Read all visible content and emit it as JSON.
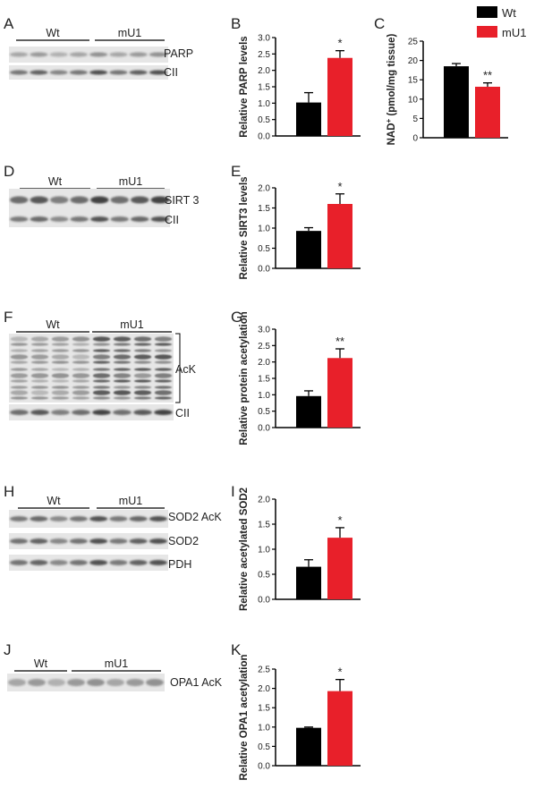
{
  "colors": {
    "wt": "#000000",
    "mu1": "#e8202a",
    "blot_band": "#2a2a2a"
  },
  "legend": {
    "items": [
      {
        "label": "Wt",
        "color": "#000000"
      },
      {
        "label": "mU1",
        "color": "#e8202a"
      }
    ]
  },
  "blots": [
    {
      "panel": "A",
      "groups": [
        "Wt",
        "mU1"
      ],
      "bands": [
        "PARP",
        "CII"
      ]
    },
    {
      "panel": "D",
      "groups": [
        "Wt",
        "mU1"
      ],
      "bands": [
        "SIRT 3",
        "CII"
      ]
    },
    {
      "panel": "F",
      "groups": [
        "Wt",
        "mU1"
      ],
      "bands": [
        "AcK",
        "CII"
      ]
    },
    {
      "panel": "H",
      "groups": [
        "Wt",
        "mU1"
      ],
      "bands": [
        "SOD2 AcK",
        "SOD2",
        "PDH"
      ]
    },
    {
      "panel": "J",
      "groups": [
        "Wt",
        "mU1"
      ],
      "bands": [
        "OPA1 AcK"
      ]
    }
  ],
  "chart_data": [
    {
      "panel": "B",
      "type": "bar",
      "ylabel": "Relative PARP levels",
      "ylim": [
        0,
        3.0
      ],
      "yticks": [
        0.0,
        0.5,
        1.0,
        1.5,
        2.0,
        2.5,
        3.0
      ],
      "tick_format": 1,
      "categories": [
        "Wt",
        "mU1"
      ],
      "values": [
        1.02,
        2.38
      ],
      "errors": [
        0.3,
        0.22
      ],
      "significance": "*"
    },
    {
      "panel": "C",
      "type": "bar",
      "ylabel_pre": "NAD",
      "ylabel_sup": "+",
      "ylabel_post": " (pmol/mg tissue)",
      "ylim": [
        0,
        25
      ],
      "yticks": [
        0,
        5,
        10,
        15,
        20,
        25
      ],
      "tick_format": 0,
      "categories": [
        "Wt",
        "mU1"
      ],
      "values": [
        18.5,
        13.2
      ],
      "errors": [
        0.7,
        1.0
      ],
      "significance": "**"
    },
    {
      "panel": "E",
      "type": "bar",
      "ylabel": "Relative SIRT3 levels",
      "ylim": [
        0,
        2.0
      ],
      "yticks": [
        0.0,
        0.5,
        1.0,
        1.5,
        2.0
      ],
      "tick_format": 1,
      "categories": [
        "Wt",
        "mU1"
      ],
      "values": [
        0.93,
        1.6
      ],
      "errors": [
        0.08,
        0.25
      ],
      "significance": "*"
    },
    {
      "panel": "G",
      "type": "bar",
      "ylabel": "Relative protein acetylation",
      "ylim": [
        0,
        3.0
      ],
      "yticks": [
        0.0,
        0.5,
        1.0,
        1.5,
        2.0,
        2.5,
        3.0
      ],
      "tick_format": 1,
      "categories": [
        "Wt",
        "mU1"
      ],
      "values": [
        0.96,
        2.12
      ],
      "errors": [
        0.16,
        0.28
      ],
      "significance": "**"
    },
    {
      "panel": "I",
      "type": "bar",
      "ylabel": "Relative acetylated SOD2",
      "ylim": [
        0,
        2.0
      ],
      "yticks": [
        0.0,
        0.5,
        1.0,
        1.5,
        2.0
      ],
      "tick_format": 1,
      "categories": [
        "Wt",
        "mU1"
      ],
      "values": [
        0.65,
        1.23
      ],
      "errors": [
        0.14,
        0.2
      ],
      "significance": "*"
    },
    {
      "panel": "K",
      "type": "bar",
      "ylabel": "Relative OPA1 acetylation",
      "ylim": [
        0,
        2.5
      ],
      "yticks": [
        0.0,
        0.5,
        1.0,
        1.5,
        2.0,
        2.5
      ],
      "tick_format": 1,
      "categories": [
        "Wt",
        "mU1"
      ],
      "values": [
        0.98,
        1.93
      ],
      "errors": [
        0.02,
        0.3
      ],
      "significance": "*"
    }
  ]
}
